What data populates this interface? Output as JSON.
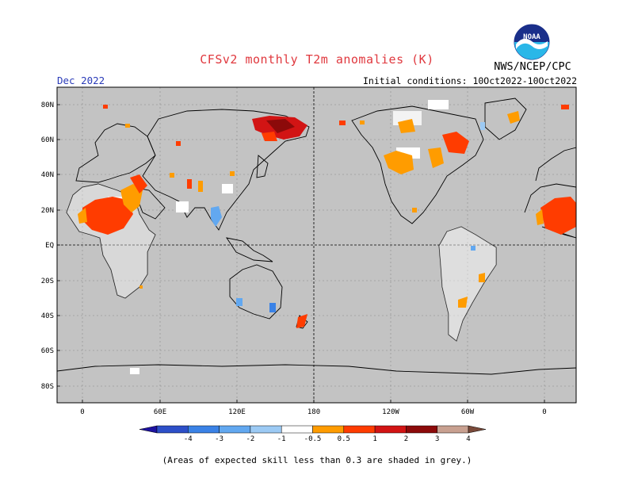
{
  "title": "CFSv2 monthly T2m anomalies (K)",
  "agency": "NWS/NCEP/CPC",
  "logo_text": "NOAA",
  "valid_month": "Dec 2022",
  "initial_conditions": "Initial conditions: 10Oct2022-10Oct2022",
  "caption": "(Areas of expected skill less than 0.3 are shaded in grey.)",
  "lat_labels": [
    "80N",
    "60N",
    "40N",
    "20N",
    "EQ",
    "20S",
    "40S",
    "60S",
    "80S"
  ],
  "lon_labels": [
    "0",
    "60E",
    "120E",
    "180",
    "120W",
    "60W",
    "0"
  ],
  "colorbar": {
    "tick_labels": [
      "-4",
      "-3",
      "-2",
      "-1",
      "-0.5",
      "0.5",
      "1",
      "2",
      "3",
      "4"
    ],
    "colors": [
      "#1e12a0",
      "#2d4fc8",
      "#3a82e6",
      "#62a8f0",
      "#9ccaf4",
      "#ffffff",
      "#ff9c00",
      "#ff3c00",
      "#d21414",
      "#8c0a0a",
      "#c8a090",
      "#7a4a3a"
    ]
  },
  "map_colors": {
    "land_skill_low": "#c3c3c3",
    "neutral": "#ffffff"
  }
}
